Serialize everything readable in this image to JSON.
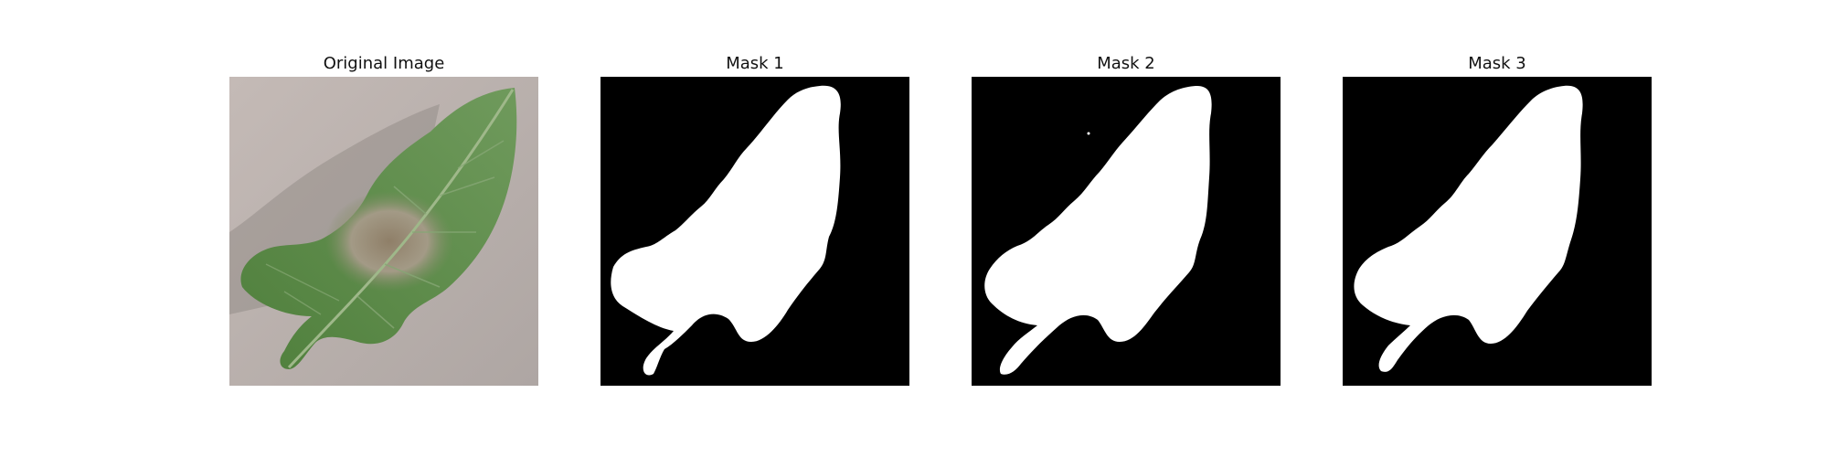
{
  "figure": {
    "panels": [
      {
        "title": "Original Image",
        "kind": "photo"
      },
      {
        "title": "Mask 1",
        "kind": "binary-mask"
      },
      {
        "title": "Mask 2",
        "kind": "binary-mask"
      },
      {
        "title": "Mask 3",
        "kind": "binary-mask"
      }
    ]
  },
  "colors": {
    "mask_background": "#000000",
    "mask_foreground": "#ffffff",
    "photo_background": "#b7aeab",
    "leaf_green": "#5a8c45",
    "leaf_dark": "#3f6b31",
    "lesion_tan": "#a59a86"
  }
}
